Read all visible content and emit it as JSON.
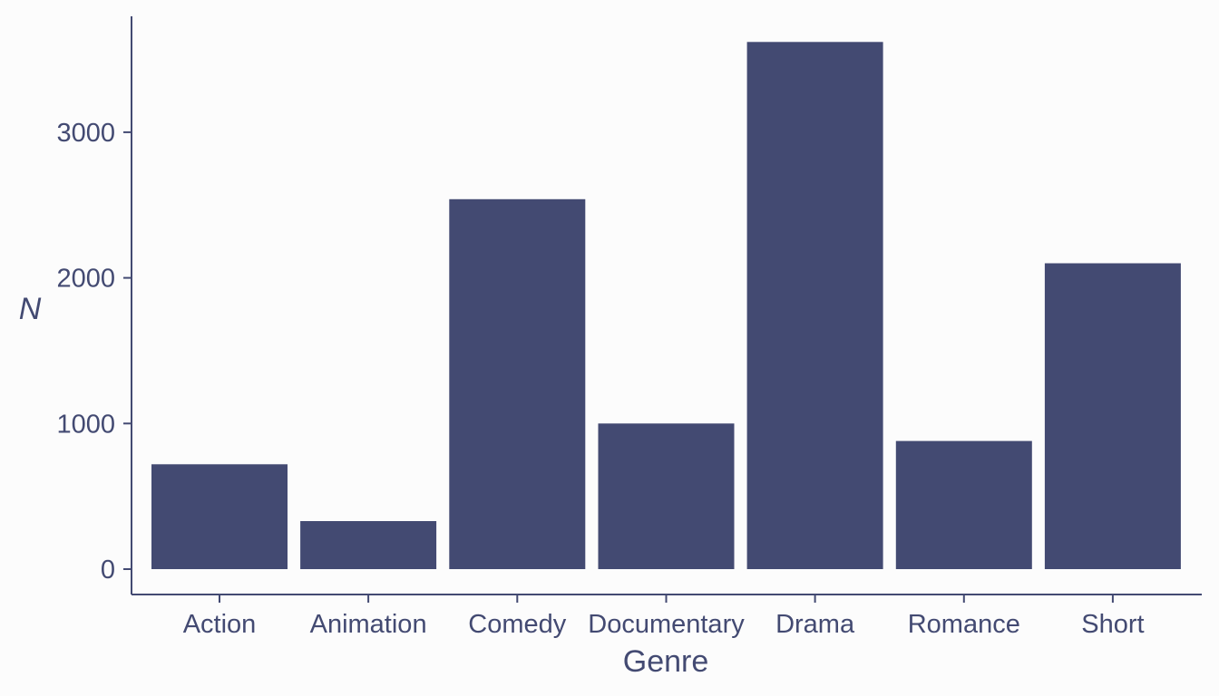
{
  "chart_data": {
    "type": "bar",
    "categories": [
      "Action",
      "Animation",
      "Comedy",
      "Documentary",
      "Drama",
      "Romance",
      "Short"
    ],
    "values": [
      720,
      330,
      2540,
      1000,
      3620,
      880,
      2100
    ],
    "xlabel": "Genre",
    "ylabel": "N",
    "yticks": [
      0,
      1000,
      2000,
      3000
    ],
    "ylim": [
      -180,
      3800
    ],
    "grid": false,
    "legend": "none",
    "bar_color": "#434a72",
    "text_color": "#434a72",
    "background": "#fcfcfc"
  }
}
